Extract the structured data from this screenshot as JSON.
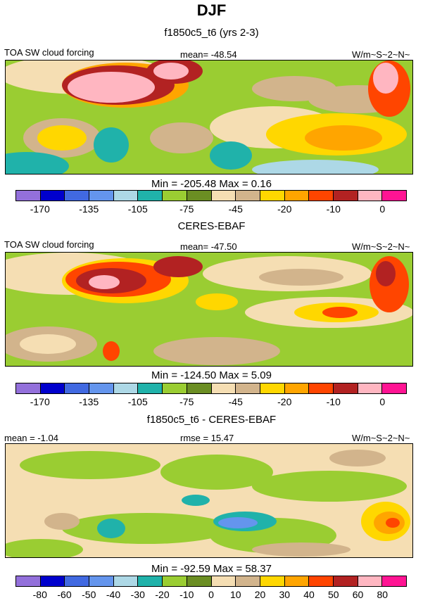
{
  "main_title": "DJF",
  "colorbar_colors": [
    "#9370db",
    "#0000cd",
    "#4169e1",
    "#6495ed",
    "#add8e6",
    "#20b2aa",
    "#9acd32",
    "#6b8e23",
    "#f5deb3",
    "#d2b48c",
    "#ffd700",
    "#ffa500",
    "#ff4500",
    "#b22222",
    "#ffb6c1",
    "#ff1493"
  ],
  "chart_data": [
    {
      "type": "heatmap",
      "title": "f1850c5_t6 (yrs 2-3)",
      "left_label": "TOA SW cloud forcing",
      "center_label": "mean= -48.54",
      "right_label": "W/m~S~2~N~",
      "stat_text": "Min = -205.48 Max =   0.16",
      "stats": {
        "mean": -48.54,
        "min": -205.48,
        "max": 0.16
      },
      "colorbar_ticks": [
        "-170",
        "-135",
        "-105",
        "-75",
        "-45",
        "-20",
        "-10",
        "0"
      ],
      "levels": [
        -170,
        -150,
        -135,
        -120,
        -105,
        -90,
        -75,
        -60,
        -45,
        -30,
        -20,
        -15,
        -10,
        -5,
        0
      ]
    },
    {
      "type": "heatmap",
      "title": "CERES-EBAF",
      "left_label": "TOA SW cloud forcing",
      "center_label": "mean= -47.50",
      "right_label": "W/m~S~2~N~",
      "stat_text": "Min = -124.50 Max =   5.09",
      "stats": {
        "mean": -47.5,
        "min": -124.5,
        "max": 5.09
      },
      "colorbar_ticks": [
        "-170",
        "-135",
        "-105",
        "-75",
        "-45",
        "-20",
        "-10",
        "0"
      ],
      "levels": [
        -170,
        -150,
        -135,
        -120,
        -105,
        -90,
        -75,
        -60,
        -45,
        -30,
        -20,
        -15,
        -10,
        -5,
        0
      ]
    },
    {
      "type": "heatmap",
      "title": "f1850c5_t6 - CERES-EBAF",
      "left_label": "mean =  -1.04",
      "center_label": "rmse =  15.47",
      "right_label": "W/m~S~2~N~",
      "stat_text": "Min = -92.59 Max =  58.37",
      "stats": {
        "mean": -1.04,
        "rmse": 15.47,
        "min": -92.59,
        "max": 58.37
      },
      "colorbar_ticks": [
        "-80",
        "-60",
        "-50",
        "-40",
        "-30",
        "-20",
        "-10",
        "0",
        "10",
        "20",
        "30",
        "40",
        "50",
        "60",
        "80"
      ],
      "levels": [
        -80,
        -60,
        -50,
        -40,
        -30,
        -20,
        -10,
        0,
        10,
        20,
        30,
        40,
        50,
        60,
        80
      ]
    }
  ]
}
